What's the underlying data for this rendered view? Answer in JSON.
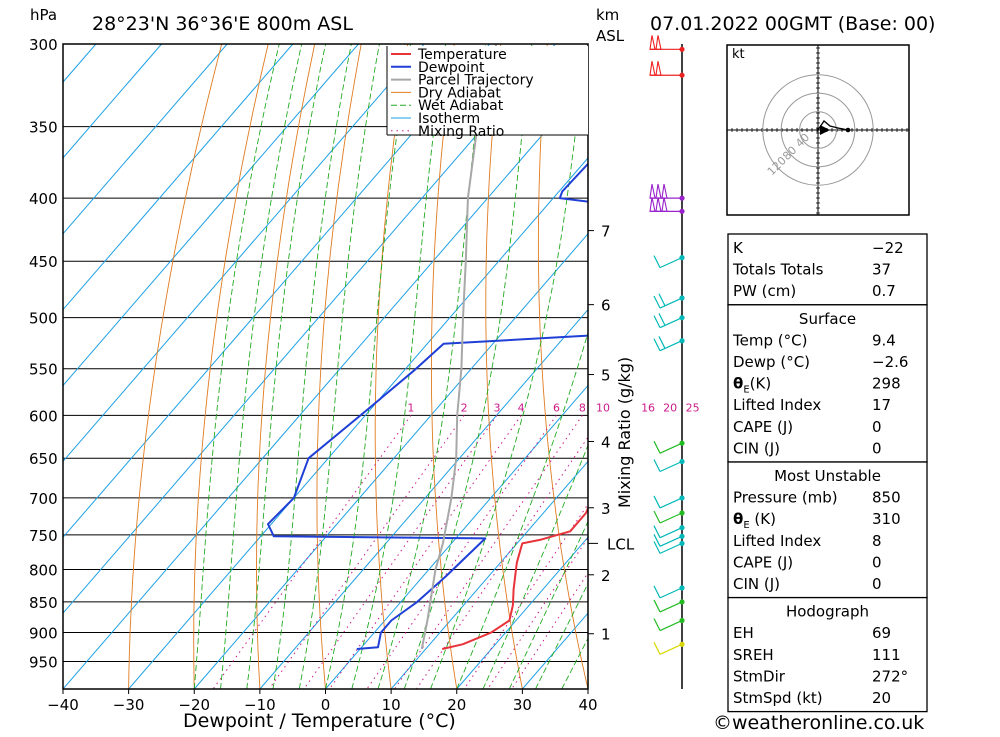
{
  "header": {
    "pressure_unit": "hPa",
    "location": "28°23'N 36°36'E 800m ASL",
    "km_label": "km",
    "asl_label": "ASL",
    "date": "07.01.2022 00GMT (Base: 00)"
  },
  "colors": {
    "temperature": "#e8333a",
    "dewpoint": "#1f3fd6",
    "parcel": "#a8a8a8",
    "dry_adiabat": "#e07b20",
    "wet_adiabat": "#22aa22",
    "isotherm": "#1ea0e6",
    "mixing_ratio": "#cc1a8a",
    "wind_cyan": "#00b8b8",
    "wind_green": "#22bb22",
    "wind_purple": "#9922cc",
    "wind_red": "#ee2222",
    "wind_yellow": "#d8d800"
  },
  "chart_data": {
    "type": "line",
    "chart_kind": "skew-T log-P sounding",
    "xlabel": "Dewpoint / Temperature (°C)",
    "ylabel": "hPa",
    "x_ticks": [
      "−40",
      "−30",
      "−20",
      "−10",
      "0",
      "10",
      "20",
      "30",
      "40"
    ],
    "x_tick_values": [
      -40,
      -30,
      -20,
      -10,
      0,
      10,
      20,
      30,
      40
    ],
    "y_ticks": [
      "300",
      "350",
      "400",
      "450",
      "500",
      "550",
      "600",
      "650",
      "700",
      "750",
      "800",
      "850",
      "900",
      "950"
    ],
    "y_tick_values": [
      300,
      350,
      400,
      450,
      500,
      550,
      600,
      650,
      700,
      750,
      800,
      850,
      900,
      950
    ],
    "ylim": [
      300,
      1000
    ],
    "xlim": [
      -40,
      40
    ],
    "legend": [
      "Temperature",
      "Dewpoint",
      "Parcel Trajectory",
      "Dry Adiabat",
      "Wet Adiabat",
      "Isotherm",
      "Mixing Ratio"
    ],
    "legend_position": "top-right",
    "mixing_ratio_axis_label": "Mixing Ratio (g/kg)",
    "mixing_ratio_labels": [
      "1",
      "2",
      "3",
      "4",
      "6",
      "8",
      "10",
      "16",
      "20",
      "25"
    ],
    "mixing_ratio_values": [
      1,
      2,
      3,
      4,
      6,
      8,
      10,
      16,
      20,
      25
    ],
    "km_ticks": [
      "1",
      "2",
      "3",
      "4",
      "5",
      "6",
      "7"
    ],
    "km_pressures": [
      902,
      808,
      713,
      630,
      556,
      488,
      425
    ],
    "lcl_label": "LCL",
    "lcl_pressure": 762,
    "series": [
      {
        "name": "Temperature",
        "points": [
          [
            928,
            12.5
          ],
          [
            920,
            15
          ],
          [
            900,
            17.8
          ],
          [
            880,
            19
          ],
          [
            855,
            17.5
          ],
          [
            830,
            15.5
          ],
          [
            790,
            12.5
          ],
          [
            762,
            10.8
          ],
          [
            757,
            13
          ],
          [
            745,
            16.5
          ],
          [
            720,
            16.5
          ],
          [
            700,
            15.5
          ],
          [
            650,
            12
          ],
          [
            600,
            7.5
          ],
          [
            550,
            2
          ],
          [
            525,
            -2.5
          ],
          [
            518,
            -3
          ],
          [
            500,
            -5
          ],
          [
            470,
            -9.5
          ],
          [
            450,
            -11
          ],
          [
            415,
            -12
          ],
          [
            395,
            -13
          ],
          [
            345,
            -20
          ],
          [
            300,
            -27
          ]
        ]
      },
      {
        "name": "Dewpoint",
        "points": [
          [
            928,
            -0.5
          ],
          [
            925,
            2.5
          ],
          [
            900,
            1
          ],
          [
            880,
            1
          ],
          [
            850,
            2.5
          ],
          [
            810,
            3.5
          ],
          [
            755,
            4.5
          ],
          [
            752,
            -28
          ],
          [
            735,
            -30.5
          ],
          [
            700,
            -30
          ],
          [
            650,
            -33
          ],
          [
            595,
            -30.5
          ],
          [
            552,
            -28.5
          ],
          [
            525,
            -27.5
          ],
          [
            515,
            -1
          ],
          [
            497,
            1.8
          ],
          [
            470,
            1
          ],
          [
            458,
            0
          ],
          [
            443,
            -6
          ],
          [
            430,
            -12
          ],
          [
            405,
            -20
          ],
          [
            400,
            -29
          ],
          [
            395,
            -29.5
          ],
          [
            360,
            -29
          ],
          [
            300,
            -27.5
          ]
        ]
      },
      {
        "name": "Parcel Trajectory",
        "points": [
          [
            928,
            9.4
          ],
          [
            880,
            6.5
          ],
          [
            850,
            4.5
          ],
          [
            800,
            1
          ],
          [
            762,
            -1.3
          ],
          [
            700,
            -6
          ],
          [
            650,
            -10.5
          ],
          [
            600,
            -16
          ],
          [
            550,
            -21.5
          ],
          [
            500,
            -28
          ],
          [
            450,
            -35
          ],
          [
            400,
            -43
          ],
          [
            350,
            -51
          ],
          [
            300,
            -59
          ]
        ]
      }
    ],
    "wind_barbs": [
      {
        "pressure": 303,
        "color": "red",
        "flags": 2
      },
      {
        "pressure": 318,
        "color": "red",
        "flags": 2
      },
      {
        "pressure": 400,
        "color": "purple",
        "flags": 3
      },
      {
        "pressure": 410,
        "color": "purple",
        "flags": 3
      },
      {
        "pressure": 447,
        "color": "cyan",
        "flags": 1
      },
      {
        "pressure": 482,
        "color": "cyan",
        "flags": 2
      },
      {
        "pressure": 500,
        "color": "cyan",
        "flags": 2
      },
      {
        "pressure": 522,
        "color": "cyan",
        "flags": 2
      },
      {
        "pressure": 632,
        "color": "green",
        "flags": 1
      },
      {
        "pressure": 654,
        "color": "cyan",
        "flags": 1
      },
      {
        "pressure": 700,
        "color": "cyan",
        "flags": 1
      },
      {
        "pressure": 720,
        "color": "green",
        "flags": 1
      },
      {
        "pressure": 740,
        "color": "cyan",
        "flags": 1
      },
      {
        "pressure": 752,
        "color": "cyan",
        "flags": 1
      },
      {
        "pressure": 762,
        "color": "cyan",
        "flags": 1
      },
      {
        "pressure": 828,
        "color": "cyan",
        "flags": 1
      },
      {
        "pressure": 850,
        "color": "green",
        "flags": 1
      },
      {
        "pressure": 880,
        "color": "green",
        "flags": 1
      },
      {
        "pressure": 920,
        "color": "yellow",
        "flags": 1
      }
    ],
    "hodograph": {
      "unit_label": "kt",
      "ring_labels": [
        "40",
        "80",
        "120"
      ],
      "ring_values": [
        40,
        80,
        120
      ]
    }
  },
  "indices": {
    "general": [
      {
        "label": "K",
        "value": "−22"
      },
      {
        "label": "Totals Totals",
        "value": "37"
      },
      {
        "label": "PW (cm)",
        "value": "0.7"
      }
    ],
    "surface": {
      "title": "Surface",
      "rows": [
        {
          "label": "Temp (°C)",
          "value": "9.4"
        },
        {
          "label": "Dewp (°C)",
          "value": "−2.6"
        },
        {
          "label": "θE(K)",
          "value": "298"
        },
        {
          "label": "Lifted Index",
          "value": "17"
        },
        {
          "label": "CAPE (J)",
          "value": "0"
        },
        {
          "label": "CIN (J)",
          "value": "0"
        }
      ]
    },
    "most_unstable": {
      "title": "Most Unstable",
      "rows": [
        {
          "label": "Pressure (mb)",
          "value": "850"
        },
        {
          "label": "θE (K)",
          "value": "310"
        },
        {
          "label": "Lifted Index",
          "value": "8"
        },
        {
          "label": "CAPE (J)",
          "value": "0"
        },
        {
          "label": "CIN (J)",
          "value": "0"
        }
      ]
    },
    "hodograph": {
      "title": "Hodograph",
      "rows": [
        {
          "label": "EH",
          "value": "69"
        },
        {
          "label": "SREH",
          "value": "111"
        },
        {
          "label": "StmDir",
          "value": "272°"
        },
        {
          "label": "StmSpd (kt)",
          "value": "20"
        }
      ]
    }
  },
  "footer": {
    "copyright": "©weatheronline.co.uk"
  }
}
